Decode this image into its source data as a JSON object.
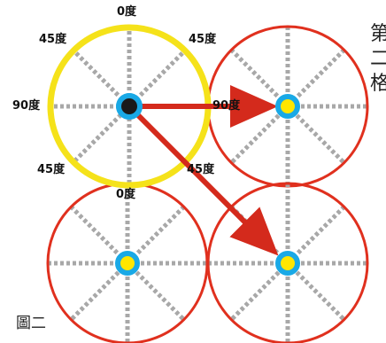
{
  "labels": {
    "deg0": "0度",
    "deg45": "45度",
    "deg90": "90度"
  },
  "caption": "圖二",
  "side_text": [
    "第",
    "二",
    "格"
  ],
  "colors": {
    "origin_circle": "#f5e21a",
    "cell_circle": "#e0301e",
    "arrow": "#d42a1c",
    "dot_ring": "#19a9e6",
    "center_dot": "#1a1a1a",
    "target_dot": "#ffe600",
    "guide_lines": "#a8a8a8"
  }
}
